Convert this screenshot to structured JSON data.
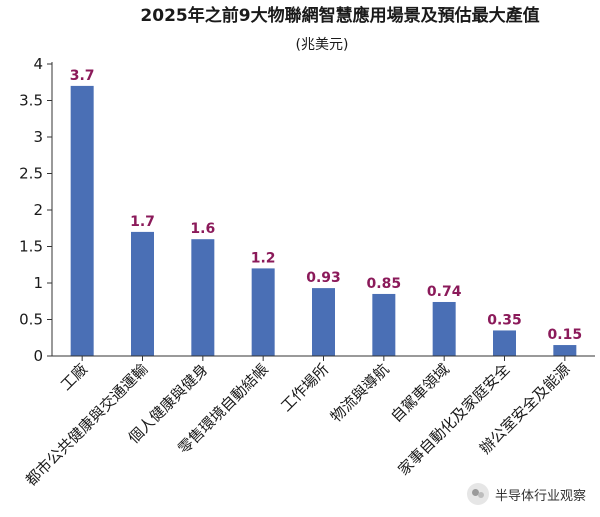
{
  "chart_data": {
    "type": "bar",
    "title": "2025年之前9大物聯網智慧應用場景及預估最大產值",
    "subtitle": "(兆美元)",
    "xlabel": "",
    "ylabel": "",
    "ylim": [
      0,
      4
    ],
    "yticks": [
      "0",
      "0.5",
      "1",
      "1.5",
      "2",
      "2.5",
      "3",
      "3.5",
      "4"
    ],
    "grid": false,
    "categories": [
      "工廠",
      "都市公共健康與交通運輸",
      "個人健康與健身",
      "零售環境自動結帳",
      "工作場所",
      "物流與導航",
      "自駕車領域",
      "家事自動化及家庭安全",
      "辦公室安全及能源"
    ],
    "values": [
      3.7,
      1.7,
      1.6,
      1.2,
      0.93,
      0.85,
      0.74,
      0.35,
      0.15
    ],
    "value_labels": [
      "3.7",
      "1.7",
      "1.6",
      "1.2",
      "0.93",
      "0.85",
      "0.74",
      "0.35",
      "0.15"
    ],
    "bar_color": "#4a6fb5",
    "label_color": "#8b1a5a"
  },
  "watermark": {
    "text": "半导体行业观察",
    "icon": "wechat-icon"
  }
}
